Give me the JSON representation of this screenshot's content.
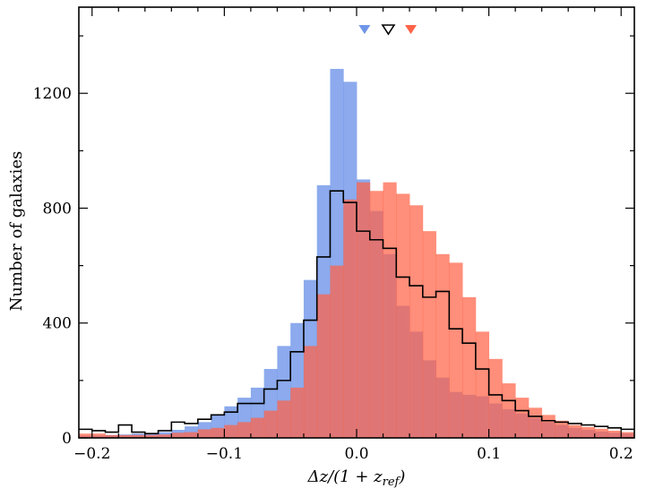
{
  "chart_data": {
    "type": "bar",
    "bins_start": -0.21,
    "bin_width": 0.01,
    "xlim": [
      -0.21,
      0.21
    ],
    "ylim": [
      0,
      1500
    ],
    "xticks": [
      -0.2,
      -0.1,
      0.0,
      0.1,
      0.2
    ],
    "xtick_labels": [
      "−0.2",
      "−0.1",
      "0.0",
      "0.1",
      "0.2"
    ],
    "yticks": [
      0,
      400,
      800,
      1200
    ],
    "ytick_labels": [
      "0",
      "400",
      "800",
      "1200"
    ],
    "ylabel": "Number of galaxies",
    "xlabel_main": "Δz/(1 + z",
    "xlabel_sub": "ref",
    "xlabel_close": ")",
    "grid": false,
    "legend": "none",
    "series": [
      {
        "style": "filled",
        "color": "#6f95e8",
        "opacity": 0.8,
        "values": [
          8,
          8,
          10,
          12,
          15,
          15,
          20,
          28,
          40,
          55,
          80,
          110,
          140,
          175,
          240,
          320,
          400,
          550,
          880,
          1285,
          1240,
          900,
          790,
          640,
          460,
          370,
          270,
          210,
          160,
          150,
          145,
          120,
          100,
          85,
          70,
          55,
          45,
          35,
          28,
          22,
          18,
          15
        ]
      },
      {
        "style": "filled",
        "color": "#ff6347",
        "opacity": 0.72,
        "values": [
          15,
          15,
          10,
          10,
          10,
          10,
          12,
          18,
          20,
          30,
          35,
          45,
          55,
          70,
          95,
          130,
          175,
          320,
          500,
          600,
          830,
          890,
          860,
          890,
          850,
          810,
          720,
          640,
          610,
          490,
          370,
          275,
          190,
          140,
          105,
          80,
          60,
          45,
          38,
          32,
          25,
          20
        ]
      },
      {
        "style": "step",
        "color": "#000000",
        "values": [
          30,
          25,
          20,
          45,
          20,
          15,
          25,
          55,
          50,
          65,
          80,
          90,
          120,
          120,
          170,
          200,
          300,
          410,
          630,
          860,
          820,
          720,
          690,
          660,
          560,
          530,
          490,
          510,
          380,
          330,
          240,
          150,
          130,
          95,
          75,
          60,
          55,
          50,
          45,
          40,
          35,
          30
        ]
      }
    ],
    "markers": [
      {
        "x": 0.006,
        "style": "filled",
        "color": "#6f95e8"
      },
      {
        "x": 0.024,
        "style": "open",
        "color": "#000000"
      },
      {
        "x": 0.041,
        "style": "filled",
        "color": "#ff6347"
      }
    ]
  }
}
